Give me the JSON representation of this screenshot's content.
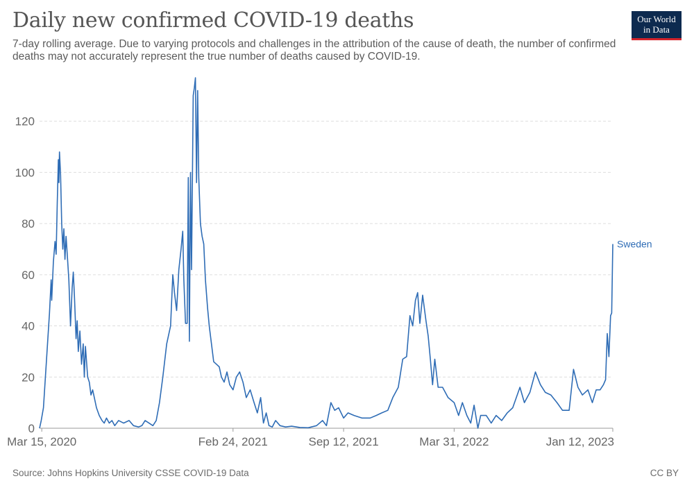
{
  "header": {
    "title": "Daily new confirmed COVID-19 deaths",
    "subtitle": "7-day rolling average. Due to varying protocols and challenges in the attribution of the cause of death, the number of confirmed deaths may not accurately represent the true number of deaths caused by COVID-19.",
    "logo_line1": "Our World",
    "logo_line2": "in Data"
  },
  "footer": {
    "source": "Source: Johns Hopkins University CSSE COVID-19 Data",
    "license": "CC BY"
  },
  "colors": {
    "series": "#2e6cb5",
    "grid": "#dddddd",
    "logo_bg": "#0d2a4f",
    "logo_accent": "#d4242b"
  },
  "chart_data": {
    "type": "line",
    "title": "Daily new confirmed COVID-19 deaths",
    "xlabel": "",
    "ylabel": "",
    "ylim": [
      0,
      137
    ],
    "yticks": [
      0,
      20,
      40,
      60,
      80,
      100,
      120
    ],
    "xlim": [
      "2020-03-11",
      "2023-01-12"
    ],
    "xticks": [
      "Mar 15, 2020",
      "Feb 24, 2021",
      "Sep 12, 2021",
      "Mar 31, 2022",
      "Jan 12, 2023"
    ],
    "xtick_dates": [
      "2020-03-15",
      "2021-02-24",
      "2021-09-12",
      "2022-03-31",
      "2023-01-12"
    ],
    "grid": "horizontal dashed",
    "series": [
      {
        "name": "Sweden",
        "points": [
          [
            "2020-03-11",
            0
          ],
          [
            "2020-03-14",
            3
          ],
          [
            "2020-03-18",
            8
          ],
          [
            "2020-03-23",
            25
          ],
          [
            "2020-03-29",
            45
          ],
          [
            "2020-04-01",
            58
          ],
          [
            "2020-04-02",
            50
          ],
          [
            "2020-04-05",
            65
          ],
          [
            "2020-04-08",
            73
          ],
          [
            "2020-04-10",
            68
          ],
          [
            "2020-04-12",
            88
          ],
          [
            "2020-04-14",
            105
          ],
          [
            "2020-04-15",
            96
          ],
          [
            "2020-04-16",
            108
          ],
          [
            "2020-04-18",
            99
          ],
          [
            "2020-04-20",
            80
          ],
          [
            "2020-04-22",
            70
          ],
          [
            "2020-04-24",
            78
          ],
          [
            "2020-04-26",
            66
          ],
          [
            "2020-04-28",
            75
          ],
          [
            "2020-05-01",
            65
          ],
          [
            "2020-05-03",
            58
          ],
          [
            "2020-05-06",
            40
          ],
          [
            "2020-05-09",
            55
          ],
          [
            "2020-05-11",
            61
          ],
          [
            "2020-05-13",
            52
          ],
          [
            "2020-05-16",
            35
          ],
          [
            "2020-05-18",
            42
          ],
          [
            "2020-05-20",
            30
          ],
          [
            "2020-05-23",
            38
          ],
          [
            "2020-05-26",
            25
          ],
          [
            "2020-05-29",
            33
          ],
          [
            "2020-05-31",
            20
          ],
          [
            "2020-06-02",
            32
          ],
          [
            "2020-06-06",
            20
          ],
          [
            "2020-06-09",
            18
          ],
          [
            "2020-06-12",
            13
          ],
          [
            "2020-06-15",
            15
          ],
          [
            "2020-06-18",
            12
          ],
          [
            "2020-06-22",
            8
          ],
          [
            "2020-06-27",
            5
          ],
          [
            "2020-07-02",
            3
          ],
          [
            "2020-07-06",
            2
          ],
          [
            "2020-07-10",
            4
          ],
          [
            "2020-07-15",
            2
          ],
          [
            "2020-07-20",
            3
          ],
          [
            "2020-07-25",
            1
          ],
          [
            "2020-08-01",
            3
          ],
          [
            "2020-08-10",
            2
          ],
          [
            "2020-08-20",
            3
          ],
          [
            "2020-08-28",
            1
          ],
          [
            "2020-09-06",
            0.5
          ],
          [
            "2020-09-12",
            1
          ],
          [
            "2020-09-18",
            3
          ],
          [
            "2020-09-25",
            2
          ],
          [
            "2020-10-02",
            1
          ],
          [
            "2020-10-08",
            3
          ],
          [
            "2020-10-14",
            10
          ],
          [
            "2020-10-20",
            20
          ],
          [
            "2020-10-27",
            33
          ],
          [
            "2020-10-30",
            36
          ],
          [
            "2020-11-03",
            40
          ],
          [
            "2020-11-07",
            60
          ],
          [
            "2020-11-10",
            53
          ],
          [
            "2020-11-14",
            46
          ],
          [
            "2020-11-18",
            62
          ],
          [
            "2020-11-22",
            70
          ],
          [
            "2020-11-25",
            77
          ],
          [
            "2020-11-27",
            58
          ],
          [
            "2020-11-30",
            41
          ],
          [
            "2020-12-03",
            41
          ],
          [
            "2020-12-05",
            98
          ],
          [
            "2020-12-07",
            34
          ],
          [
            "2020-12-09",
            100
          ],
          [
            "2020-12-11",
            62
          ],
          [
            "2020-12-14",
            130
          ],
          [
            "2020-12-16",
            133
          ],
          [
            "2020-12-18",
            137
          ],
          [
            "2020-12-20",
            96
          ],
          [
            "2020-12-22",
            132
          ],
          [
            "2020-12-24",
            98
          ],
          [
            "2020-12-27",
            80
          ],
          [
            "2020-12-30",
            75
          ],
          [
            "2021-01-02",
            72
          ],
          [
            "2021-01-05",
            58
          ],
          [
            "2021-01-09",
            47
          ],
          [
            "2021-01-12",
            40
          ],
          [
            "2021-01-16",
            33
          ],
          [
            "2021-01-20",
            26
          ],
          [
            "2021-01-25",
            25
          ],
          [
            "2021-01-30",
            24
          ],
          [
            "2021-02-03",
            20
          ],
          [
            "2021-02-08",
            18
          ],
          [
            "2021-02-13",
            22
          ],
          [
            "2021-02-18",
            17
          ],
          [
            "2021-02-24",
            15
          ],
          [
            "2021-03-02",
            20
          ],
          [
            "2021-03-08",
            22
          ],
          [
            "2021-03-14",
            18
          ],
          [
            "2021-03-20",
            12
          ],
          [
            "2021-03-27",
            15
          ],
          [
            "2021-04-03",
            10
          ],
          [
            "2021-04-09",
            6
          ],
          [
            "2021-04-15",
            12
          ],
          [
            "2021-04-20",
            2
          ],
          [
            "2021-04-25",
            6
          ],
          [
            "2021-04-30",
            1
          ],
          [
            "2021-05-06",
            0.5
          ],
          [
            "2021-05-12",
            3
          ],
          [
            "2021-05-20",
            1
          ],
          [
            "2021-05-30",
            0.5
          ],
          [
            "2021-06-10",
            0.8
          ],
          [
            "2021-06-25",
            0.3
          ],
          [
            "2021-07-10",
            0.2
          ],
          [
            "2021-07-25",
            1
          ],
          [
            "2021-08-05",
            3
          ],
          [
            "2021-08-12",
            1
          ],
          [
            "2021-08-20",
            10
          ],
          [
            "2021-08-27",
            7
          ],
          [
            "2021-09-03",
            8
          ],
          [
            "2021-09-12",
            4
          ],
          [
            "2021-09-20",
            6
          ],
          [
            "2021-10-01",
            5
          ],
          [
            "2021-10-15",
            4
          ],
          [
            "2021-10-30",
            4
          ],
          [
            "2021-11-10",
            5
          ],
          [
            "2021-11-20",
            6
          ],
          [
            "2021-12-01",
            7
          ],
          [
            "2021-12-10",
            12
          ],
          [
            "2021-12-20",
            16
          ],
          [
            "2021-12-28",
            27
          ],
          [
            "2022-01-04",
            28
          ],
          [
            "2022-01-10",
            44
          ],
          [
            "2022-01-15",
            40
          ],
          [
            "2022-01-20",
            50
          ],
          [
            "2022-01-24",
            53
          ],
          [
            "2022-01-28",
            41
          ],
          [
            "2022-02-02",
            52
          ],
          [
            "2022-02-08",
            42
          ],
          [
            "2022-02-12",
            36
          ],
          [
            "2022-02-16",
            27
          ],
          [
            "2022-02-20",
            17
          ],
          [
            "2022-02-24",
            27
          ],
          [
            "2022-03-02",
            16
          ],
          [
            "2022-03-10",
            16
          ],
          [
            "2022-03-20",
            12
          ],
          [
            "2022-03-31",
            10
          ],
          [
            "2022-04-08",
            5
          ],
          [
            "2022-04-15",
            10
          ],
          [
            "2022-04-23",
            5
          ],
          [
            "2022-04-30",
            2
          ],
          [
            "2022-05-06",
            9
          ],
          [
            "2022-05-13",
            0
          ],
          [
            "2022-05-18",
            5
          ],
          [
            "2022-05-28",
            5
          ],
          [
            "2022-06-06",
            2
          ],
          [
            "2022-06-15",
            5
          ],
          [
            "2022-06-25",
            3
          ],
          [
            "2022-07-05",
            6
          ],
          [
            "2022-07-15",
            8
          ],
          [
            "2022-07-28",
            16
          ],
          [
            "2022-08-05",
            10
          ],
          [
            "2022-08-15",
            14
          ],
          [
            "2022-08-25",
            22
          ],
          [
            "2022-09-03",
            17
          ],
          [
            "2022-09-12",
            14
          ],
          [
            "2022-09-22",
            13
          ],
          [
            "2022-10-03",
            10
          ],
          [
            "2022-10-13",
            7
          ],
          [
            "2022-10-25",
            7
          ],
          [
            "2022-11-02",
            23
          ],
          [
            "2022-11-10",
            16
          ],
          [
            "2022-11-18",
            13
          ],
          [
            "2022-11-28",
            15
          ],
          [
            "2022-12-06",
            10
          ],
          [
            "2022-12-13",
            15
          ],
          [
            "2022-12-20",
            15
          ],
          [
            "2022-12-26",
            17
          ],
          [
            "2022-12-30",
            19
          ],
          [
            "2023-01-02",
            37
          ],
          [
            "2023-01-05",
            28
          ],
          [
            "2023-01-08",
            44
          ],
          [
            "2023-01-10",
            45
          ],
          [
            "2023-01-12",
            72
          ]
        ]
      }
    ]
  }
}
